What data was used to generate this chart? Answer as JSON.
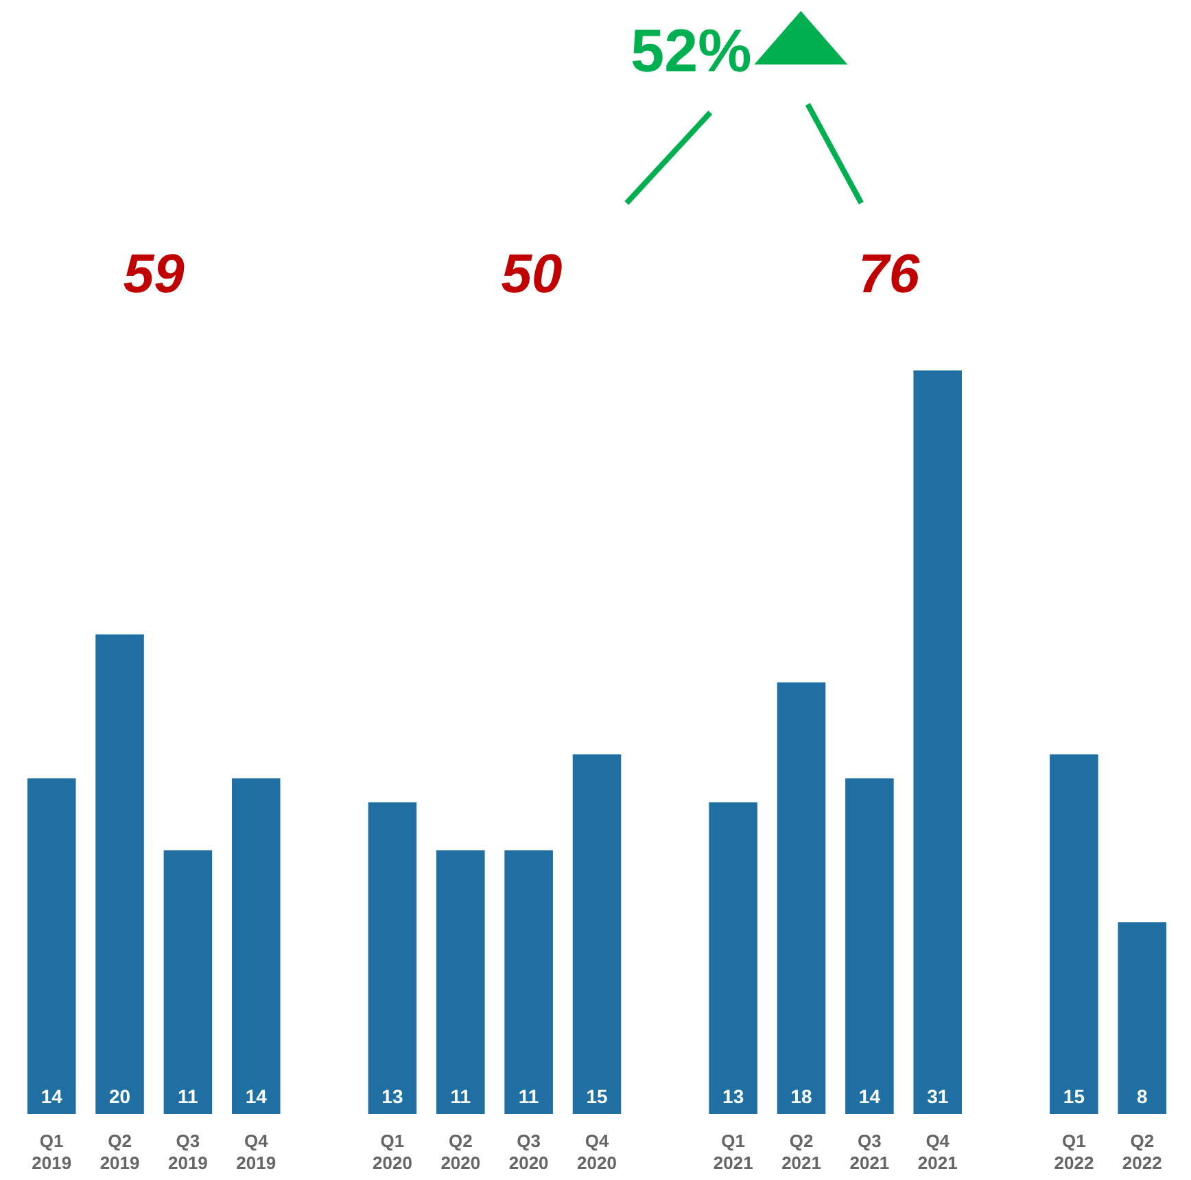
{
  "chart_data": {
    "type": "bar",
    "categories": [
      "Q1 2019",
      "Q2 2019",
      "Q3 2019",
      "Q4 2019",
      null,
      "Q1 2020",
      "Q2 2020",
      "Q3 2020",
      "Q4 2020",
      null,
      "Q1 2021",
      "Q2 2021",
      "Q3 2021",
      "Q4 2021",
      null,
      "Q1 2022",
      "Q2 2022"
    ],
    "values": [
      14,
      20,
      11,
      14,
      null,
      13,
      11,
      11,
      15,
      null,
      13,
      18,
      14,
      31,
      null,
      15,
      8
    ],
    "color": "#1f6fa3",
    "data_labels": true,
    "annotations": [
      "59",
      "50",
      "76",
      "52%"
    ]
  }
}
